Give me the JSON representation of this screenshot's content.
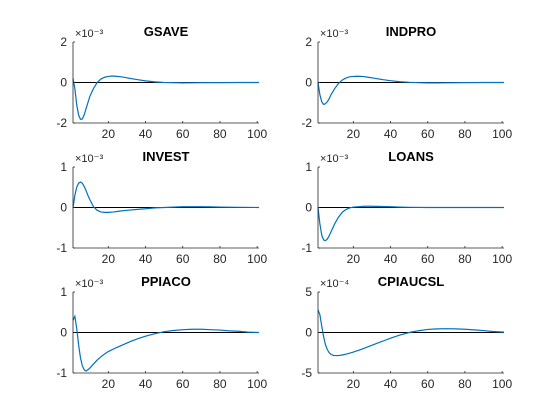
{
  "chart_data": [
    {
      "type": "line",
      "title": "GSAVE",
      "exponent_label": "×10⁻³",
      "xlim": [
        1,
        101
      ],
      "ylim": [
        -2,
        2
      ],
      "xticks": [
        20,
        40,
        60,
        80,
        100
      ],
      "yticks": [
        -2,
        0,
        2
      ],
      "zero_line": true,
      "series": [
        {
          "color": "#0072BD",
          "x": [
            1,
            2,
            3,
            4,
            5,
            6,
            7,
            8,
            9,
            10,
            12,
            14,
            16,
            18,
            20,
            22,
            24,
            27,
            30,
            35,
            40,
            45,
            50,
            55,
            60,
            65,
            70,
            80,
            90,
            101
          ],
          "y": [
            0.2,
            -0.3,
            -1.1,
            -1.6,
            -1.82,
            -1.8,
            -1.6,
            -1.3,
            -1.0,
            -0.7,
            -0.3,
            0.0,
            0.17,
            0.26,
            0.3,
            0.32,
            0.31,
            0.28,
            0.23,
            0.15,
            0.08,
            0.03,
            0.0,
            -0.01,
            -0.02,
            -0.015,
            -0.01,
            -0.005,
            0.0,
            0.0
          ]
        }
      ]
    },
    {
      "type": "line",
      "title": "INDPRO",
      "exponent_label": "×10⁻³",
      "xlim": [
        1,
        101
      ],
      "ylim": [
        -2,
        2
      ],
      "xticks": [
        20,
        40,
        60,
        80,
        100
      ],
      "yticks": [
        -2,
        0,
        2
      ],
      "zero_line": true,
      "series": [
        {
          "color": "#0072BD",
          "x": [
            1,
            2,
            3,
            4,
            5,
            6,
            7,
            8,
            10,
            12,
            14,
            16,
            18,
            20,
            22,
            25,
            28,
            32,
            36,
            40,
            45,
            50,
            55,
            60,
            65,
            70,
            80,
            90,
            101
          ],
          "y": [
            0.0,
            -0.6,
            -0.95,
            -1.08,
            -1.05,
            -0.95,
            -0.8,
            -0.6,
            -0.3,
            -0.05,
            0.12,
            0.22,
            0.28,
            0.3,
            0.31,
            0.3,
            0.26,
            0.2,
            0.14,
            0.09,
            0.04,
            0.01,
            -0.01,
            -0.02,
            -0.02,
            -0.015,
            -0.005,
            0.0,
            0.0
          ]
        }
      ]
    },
    {
      "type": "line",
      "title": "INVEST",
      "exponent_label": "×10⁻³",
      "xlim": [
        1,
        101
      ],
      "ylim": [
        -1,
        1
      ],
      "xticks": [
        20,
        40,
        60,
        80,
        100
      ],
      "yticks": [
        -1,
        0,
        1
      ],
      "zero_line": true,
      "series": [
        {
          "color": "#0072BD",
          "x": [
            1,
            2,
            3,
            4,
            5,
            6,
            7,
            8,
            9,
            10,
            12,
            14,
            16,
            18,
            20,
            23,
            26,
            30,
            35,
            40,
            45,
            50,
            55,
            60,
            65,
            70,
            75,
            80,
            90,
            101
          ],
          "y": [
            0.0,
            0.3,
            0.5,
            0.6,
            0.63,
            0.6,
            0.52,
            0.42,
            0.3,
            0.2,
            0.02,
            -0.07,
            -0.11,
            -0.12,
            -0.12,
            -0.11,
            -0.09,
            -0.07,
            -0.05,
            -0.03,
            -0.01,
            0.0,
            0.01,
            0.02,
            0.02,
            0.02,
            0.015,
            0.01,
            0.005,
            0.0
          ]
        }
      ]
    },
    {
      "type": "line",
      "title": "LOANS",
      "exponent_label": "×10⁻³",
      "xlim": [
        1,
        101
      ],
      "ylim": [
        -1,
        1
      ],
      "xticks": [
        20,
        40,
        60,
        80,
        100
      ],
      "yticks": [
        -1,
        0,
        1
      ],
      "zero_line": true,
      "series": [
        {
          "color": "#0072BD",
          "x": [
            1,
            2,
            3,
            4,
            5,
            6,
            7,
            8,
            10,
            12,
            14,
            16,
            18,
            20,
            23,
            26,
            30,
            35,
            40,
            45,
            50,
            60,
            70,
            80,
            90,
            101
          ],
          "y": [
            0.0,
            -0.4,
            -0.68,
            -0.8,
            -0.82,
            -0.78,
            -0.7,
            -0.6,
            -0.4,
            -0.24,
            -0.12,
            -0.05,
            -0.01,
            0.01,
            0.02,
            0.03,
            0.03,
            0.025,
            0.02,
            0.01,
            0.005,
            0.0,
            0.0,
            0.0,
            0.0,
            0.0
          ]
        }
      ]
    },
    {
      "type": "line",
      "title": "PPIACO",
      "exponent_label": "×10⁻³",
      "xlim": [
        1,
        101
      ],
      "ylim": [
        -1,
        1
      ],
      "xticks": [
        20,
        40,
        60,
        80,
        100
      ],
      "yticks": [
        -1,
        0,
        1
      ],
      "zero_line": true,
      "series": [
        {
          "color": "#0072BD",
          "x": [
            1,
            2,
            3,
            4,
            5,
            6,
            7,
            8,
            9,
            10,
            12,
            14,
            16,
            18,
            20,
            24,
            28,
            32,
            36,
            40,
            45,
            50,
            55,
            60,
            65,
            70,
            75,
            80,
            85,
            90,
            95,
            101
          ],
          "y": [
            0.3,
            0.4,
            0.1,
            -0.3,
            -0.62,
            -0.82,
            -0.92,
            -0.95,
            -0.92,
            -0.88,
            -0.78,
            -0.68,
            -0.6,
            -0.53,
            -0.47,
            -0.38,
            -0.3,
            -0.22,
            -0.15,
            -0.09,
            -0.03,
            0.02,
            0.05,
            0.07,
            0.08,
            0.08,
            0.07,
            0.06,
            0.04,
            0.03,
            0.01,
            0.0
          ]
        }
      ]
    },
    {
      "type": "line",
      "title": "CPIAUCSL",
      "exponent_label": "×10⁻⁴",
      "xlim": [
        1,
        101
      ],
      "ylim": [
        -5,
        5
      ],
      "xticks": [
        20,
        40,
        60,
        80,
        100
      ],
      "yticks": [
        -5,
        0,
        5
      ],
      "zero_line": true,
      "series": [
        {
          "color": "#0072BD",
          "x": [
            1,
            2,
            3,
            4,
            5,
            6,
            7,
            8,
            9,
            10,
            12,
            14,
            16,
            18,
            20,
            24,
            28,
            32,
            36,
            40,
            45,
            50,
            55,
            60,
            65,
            70,
            75,
            80,
            85,
            90,
            95,
            101
          ],
          "y": [
            2.8,
            2.2,
            0.8,
            -0.5,
            -1.5,
            -2.1,
            -2.5,
            -2.7,
            -2.8,
            -2.85,
            -2.85,
            -2.78,
            -2.68,
            -2.55,
            -2.42,
            -2.1,
            -1.75,
            -1.4,
            -1.05,
            -0.7,
            -0.32,
            0.0,
            0.22,
            0.38,
            0.45,
            0.47,
            0.45,
            0.4,
            0.32,
            0.24,
            0.12,
            0.05
          ]
        }
      ]
    }
  ]
}
